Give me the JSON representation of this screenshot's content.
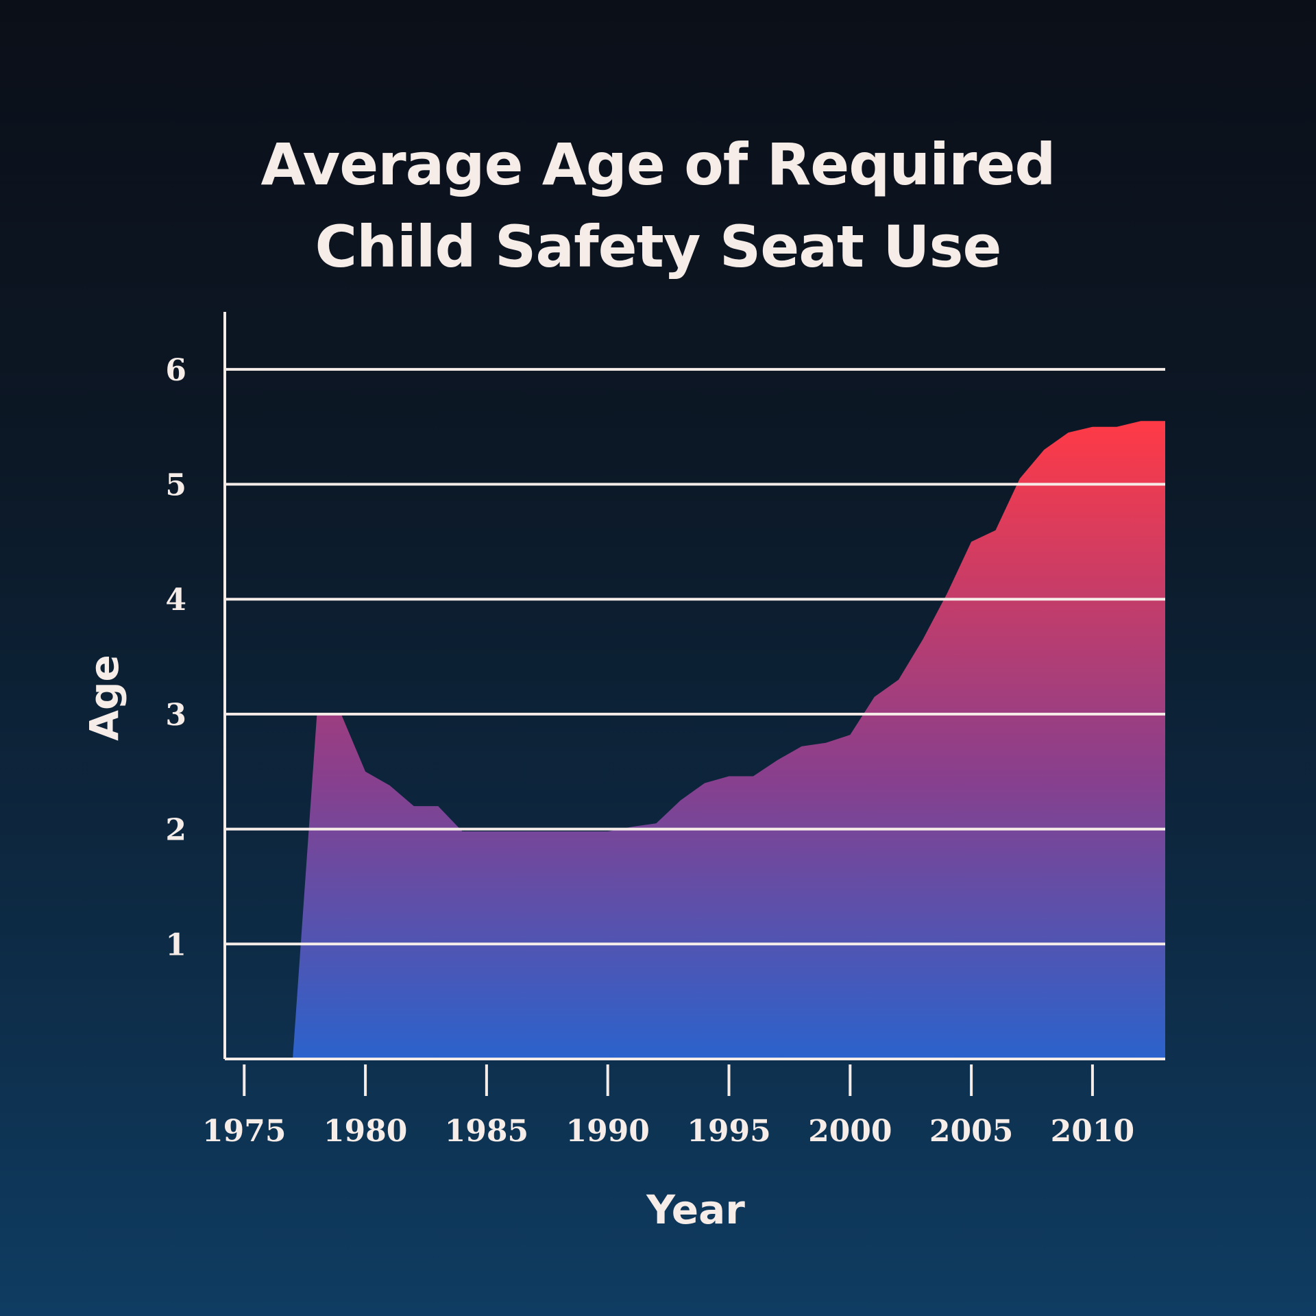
{
  "chart_data": {
    "type": "area",
    "title_lines": [
      "Average Age of Required",
      "Child Safety Seat Use"
    ],
    "xlabel": "Year",
    "ylabel": "Age",
    "x_ticks": [
      "1975",
      "1980",
      "1985",
      "1990",
      "1995",
      "2000",
      "2005",
      "2010"
    ],
    "y_ticks": [
      "1",
      "2",
      "3",
      "4",
      "5",
      "6"
    ],
    "xlim": [
      1974.2,
      2013
    ],
    "ylim": [
      0,
      6.5
    ],
    "grid": true,
    "colors": {
      "fill_top": "#ff3a46",
      "fill_mid": "#8a3f8c",
      "fill_bottom": "#2b63cc",
      "grid": "#f6ece8",
      "text": "#f6ece8"
    },
    "series": [
      {
        "x": [
          1977,
          1978,
          1979,
          1980,
          1981,
          1982,
          1983,
          1984,
          1985,
          1986,
          1987,
          1988,
          1989,
          1990,
          1991,
          1992,
          1993,
          1994,
          1995,
          1996,
          1997,
          1998,
          1999,
          2000,
          2001,
          2002,
          2003,
          2004,
          2005,
          2006,
          2007,
          2008,
          2009,
          2010,
          2011,
          2012,
          2013
        ],
        "y": [
          0,
          3.0,
          3.0,
          2.5,
          2.38,
          2.2,
          2.2,
          1.98,
          1.98,
          1.98,
          1.98,
          1.98,
          1.98,
          1.98,
          2.02,
          2.05,
          2.25,
          2.4,
          2.46,
          2.46,
          2.6,
          2.72,
          2.75,
          2.82,
          3.15,
          3.3,
          3.65,
          4.05,
          4.5,
          4.6,
          5.05,
          5.3,
          5.45,
          5.5,
          5.5,
          5.55,
          5.55
        ]
      }
    ]
  }
}
